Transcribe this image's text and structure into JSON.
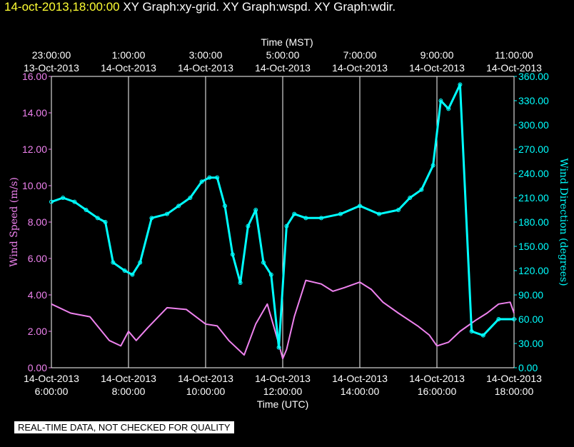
{
  "title": {
    "date": "14-oct-2013,18:00:00",
    "graphs": " XY Graph:xy-grid.  XY Graph:wspd.  XY Graph:wdir."
  },
  "notice": "REAL-TIME DATA, NOT CHECKED FOR QUALITY",
  "colors": {
    "speed": "#ee82ee",
    "direction": "#00ffff",
    "grid": "#ffffff",
    "text": "#ffffff",
    "title_date": "#ffff33"
  },
  "chart_data": {
    "type": "line",
    "top_axis": {
      "label": "Time (MST)",
      "ticks": [
        {
          "time": "23:00:00",
          "date": "13-Oct-2013"
        },
        {
          "time": "1:00:00",
          "date": "14-Oct-2013"
        },
        {
          "time": "3:00:00",
          "date": "14-Oct-2013"
        },
        {
          "time": "5:00:00",
          "date": "14-Oct-2013"
        },
        {
          "time": "7:00:00",
          "date": "14-Oct-2013"
        },
        {
          "time": "9:00:00",
          "date": "14-Oct-2013"
        },
        {
          "time": "11:00:00",
          "date": "14-Oct-2013"
        }
      ]
    },
    "bottom_axis": {
      "label": "Time (UTC)",
      "ticks": [
        {
          "date": "14-Oct-2013",
          "time": "6:00:00"
        },
        {
          "date": "14-Oct-2013",
          "time": "8:00:00"
        },
        {
          "date": "14-Oct-2013",
          "time": "10:00:00"
        },
        {
          "date": "14-Oct-2013",
          "time": "12:00:00"
        },
        {
          "date": "14-Oct-2013",
          "time": "14:00:00"
        },
        {
          "date": "14-Oct-2013",
          "time": "16:00:00"
        },
        {
          "date": "14-Oct-2013",
          "time": "18:00:00"
        }
      ]
    },
    "xlim_utc_hours": [
      6,
      18
    ],
    "grid": true,
    "left_axis": {
      "label": "Wind Speed (m/s)",
      "ylim": [
        0,
        16
      ],
      "ticks": [
        "0.00",
        "2.00",
        "4.00",
        "6.00",
        "8.00",
        "10.00",
        "12.00",
        "14.00",
        "16.00"
      ]
    },
    "right_axis": {
      "label": "Wind Direction (degrees)",
      "ylim": [
        0,
        360
      ],
      "ticks": [
        "0.00",
        "30.00",
        "60.00",
        "90.00",
        "120.00",
        "150.00",
        "180.00",
        "210.00",
        "240.00",
        "270.00",
        "300.00",
        "330.00",
        "360.00"
      ]
    },
    "series": [
      {
        "key": "wspd",
        "axis": "left",
        "x_utc_hours": [
          6.0,
          6.5,
          7.0,
          7.5,
          7.8,
          8.0,
          8.2,
          8.5,
          9.0,
          9.5,
          10.0,
          10.3,
          10.6,
          11.0,
          11.3,
          11.6,
          11.9,
          12.0,
          12.1,
          12.3,
          12.6,
          13.0,
          13.3,
          13.6,
          14.0,
          14.3,
          14.6,
          15.0,
          15.5,
          15.8,
          16.0,
          16.3,
          16.6,
          17.0,
          17.3,
          17.6,
          17.9,
          18.0
        ],
        "y": [
          3.5,
          3.0,
          2.8,
          1.5,
          1.2,
          2.0,
          1.5,
          2.2,
          3.3,
          3.2,
          2.4,
          2.3,
          1.5,
          0.7,
          2.4,
          3.5,
          1.3,
          0.5,
          1.0,
          2.8,
          4.8,
          4.6,
          4.2,
          4.4,
          4.7,
          4.3,
          3.6,
          3.0,
          2.3,
          1.8,
          1.2,
          1.4,
          2.0,
          2.6,
          3.0,
          3.5,
          3.6,
          3.0
        ]
      },
      {
        "key": "wdir",
        "axis": "right",
        "x_utc_hours": [
          6.0,
          6.3,
          6.6,
          6.9,
          7.2,
          7.4,
          7.6,
          7.9,
          8.1,
          8.3,
          8.6,
          9.0,
          9.3,
          9.6,
          9.9,
          10.1,
          10.3,
          10.5,
          10.7,
          10.9,
          11.1,
          11.3,
          11.5,
          11.7,
          11.9,
          12.1,
          12.3,
          12.6,
          13.0,
          13.5,
          14.0,
          14.5,
          15.0,
          15.3,
          15.6,
          15.9,
          16.1,
          16.3,
          16.6,
          16.9,
          17.2,
          17.6,
          18.0
        ],
        "y": [
          205,
          210,
          205,
          195,
          185,
          180,
          130,
          120,
          115,
          130,
          185,
          190,
          200,
          210,
          230,
          235,
          235,
          200,
          140,
          105,
          175,
          195,
          130,
          115,
          25,
          175,
          190,
          185,
          185,
          190,
          200,
          190,
          195,
          210,
          220,
          250,
          330,
          320,
          350,
          45,
          40,
          60,
          60
        ]
      }
    ]
  }
}
